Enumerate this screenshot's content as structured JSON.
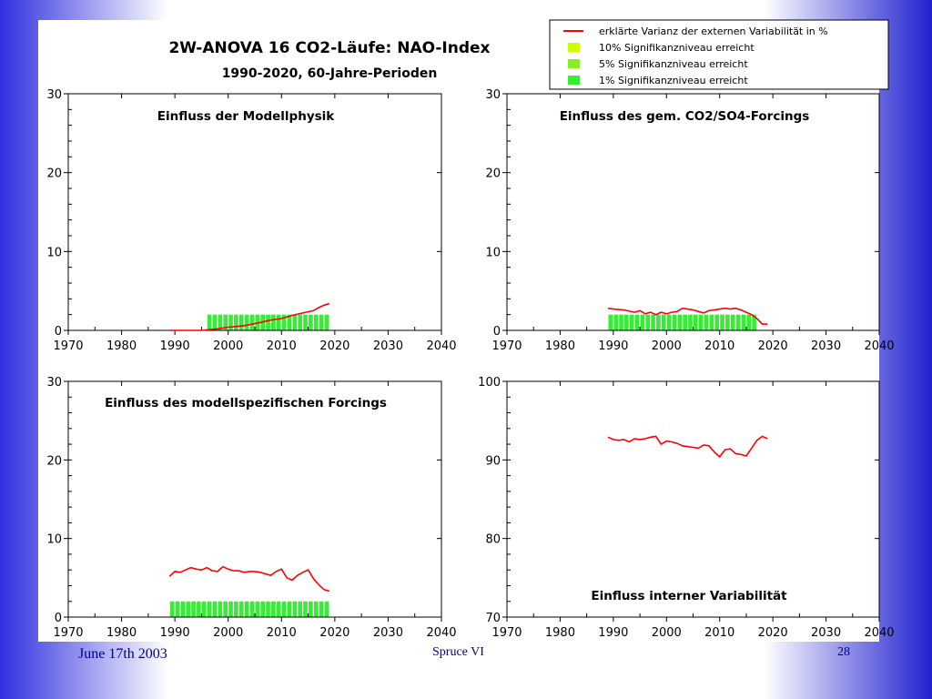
{
  "title": "2W-ANOVA 16 CO2-Läufe: NAO-Index",
  "subtitle": "1990-2020, 60-Jahre-Perioden",
  "legend": [
    {
      "label": "erklärte Varianz der externen Variabilität in %",
      "kind": "line",
      "color": "#ff0000"
    },
    {
      "label": "10% Signifikanzniveau erreicht",
      "kind": "box",
      "color": "#ccff00"
    },
    {
      "label": "5% Signifikanzniveau erreicht",
      "kind": "box",
      "color": "#88ee22"
    },
    {
      "label": "1% Signifikanzniveau erreicht",
      "kind": "box",
      "color": "#33ee33"
    }
  ],
  "colors": {
    "line": "#ff0000",
    "sig10": "#ccff00",
    "sig5": "#88ee22",
    "sig1": "#33ee33"
  },
  "footer": {
    "date": "June 17th 2003",
    "center": "Spruce  VI",
    "page": "28"
  },
  "chart_data": [
    {
      "type": "line",
      "title": "Einfluss der Modellphysik",
      "xlim": [
        1970,
        2040
      ],
      "ylim": [
        0,
        30
      ],
      "x_ticks": [
        1970,
        1980,
        1990,
        2000,
        2010,
        2020,
        2030,
        2040
      ],
      "y_ticks": [
        0,
        10,
        20,
        30
      ],
      "series": [
        {
          "x": [
            1989,
            1991,
            1995,
            1998,
            2000,
            2003,
            2006,
            2008,
            2010,
            2012,
            2014,
            2016,
            2017,
            2018,
            2019
          ],
          "y": [
            0,
            0,
            0,
            0.2,
            0.4,
            0.6,
            1.0,
            1.3,
            1.5,
            1.9,
            2.2,
            2.5,
            2.9,
            3.2,
            3.4
          ]
        }
      ],
      "significance": {
        "x_range": [
          1996,
          2019
        ],
        "height": 2,
        "level": "1%"
      }
    },
    {
      "type": "line",
      "title": "Einfluss des gem. CO2/SO4-Forcings",
      "xlim": [
        1970,
        2040
      ],
      "ylim": [
        0,
        30
      ],
      "x_ticks": [
        1970,
        1980,
        1990,
        2000,
        2010,
        2020,
        2030,
        2040
      ],
      "y_ticks": [
        0,
        10,
        20,
        30
      ],
      "series": [
        {
          "x": [
            1989,
            1990,
            1992,
            1994,
            1995,
            1996,
            1997,
            1998,
            1999,
            2000,
            2001,
            2002,
            2003,
            2004,
            2005,
            2006,
            2007,
            2008,
            2009,
            2010,
            2011,
            2012,
            2013,
            2014,
            2015,
            2016,
            2017,
            2018,
            2019
          ],
          "y": [
            2.8,
            2.7,
            2.6,
            2.3,
            2.5,
            2.1,
            2.3,
            2.0,
            2.3,
            2.1,
            2.3,
            2.4,
            2.8,
            2.7,
            2.6,
            2.4,
            2.2,
            2.5,
            2.6,
            2.7,
            2.8,
            2.7,
            2.8,
            2.6,
            2.3,
            2.0,
            1.5,
            0.8,
            0.8
          ]
        }
      ],
      "significance": {
        "x_range": [
          1989,
          2017
        ],
        "height": 2,
        "level": "1%"
      }
    },
    {
      "type": "line",
      "title": "Einfluss des modellspezifischen Forcings",
      "xlim": [
        1970,
        2040
      ],
      "ylim": [
        0,
        30
      ],
      "x_ticks": [
        1970,
        1980,
        1990,
        2000,
        2010,
        2020,
        2030,
        2040
      ],
      "y_ticks": [
        0,
        10,
        20,
        30
      ],
      "series": [
        {
          "x": [
            1989,
            1990,
            1991,
            1992,
            1993,
            1994,
            1995,
            1996,
            1997,
            1998,
            1999,
            2000,
            2001,
            2002,
            2003,
            2004,
            2005,
            2006,
            2007,
            2008,
            2009,
            2010,
            2011,
            2012,
            2013,
            2014,
            2015,
            2016,
            2017,
            2018,
            2019
          ],
          "y": [
            5.2,
            5.8,
            5.7,
            6.0,
            6.3,
            6.1,
            6.0,
            6.3,
            5.9,
            5.8,
            6.4,
            6.1,
            5.9,
            5.9,
            5.7,
            5.8,
            5.8,
            5.7,
            5.5,
            5.3,
            5.8,
            6.1,
            5.0,
            4.7,
            5.3,
            5.7,
            6.0,
            4.9,
            4.1,
            3.5,
            3.3
          ]
        }
      ],
      "significance": {
        "x_range": [
          1989,
          2019
        ],
        "height": 2,
        "level": "1%"
      }
    },
    {
      "type": "line",
      "title": "Einfluss interner Variabilität",
      "xlim": [
        1970,
        2040
      ],
      "ylim": [
        70,
        100
      ],
      "x_ticks": [
        1970,
        1980,
        1990,
        2000,
        2010,
        2020,
        2030,
        2040
      ],
      "y_ticks": [
        70,
        80,
        90,
        100
      ],
      "series": [
        {
          "x": [
            1989,
            1990,
            1991,
            1992,
            1993,
            1994,
            1995,
            1996,
            1997,
            1998,
            1999,
            2000,
            2001,
            2002,
            2003,
            2004,
            2005,
            2006,
            2007,
            2008,
            2009,
            2010,
            2011,
            2012,
            2013,
            2014,
            2015,
            2016,
            2017,
            2018,
            2019
          ],
          "y": [
            92.9,
            92.6,
            92.5,
            92.6,
            92.3,
            92.7,
            92.6,
            92.7,
            92.9,
            93.0,
            92.0,
            92.4,
            92.3,
            92.1,
            91.8,
            91.7,
            91.6,
            91.5,
            91.9,
            91.8,
            91.0,
            90.4,
            91.3,
            91.4,
            90.8,
            90.7,
            90.5,
            91.5,
            92.5,
            93.0,
            92.7
          ]
        }
      ],
      "significance": null
    }
  ]
}
